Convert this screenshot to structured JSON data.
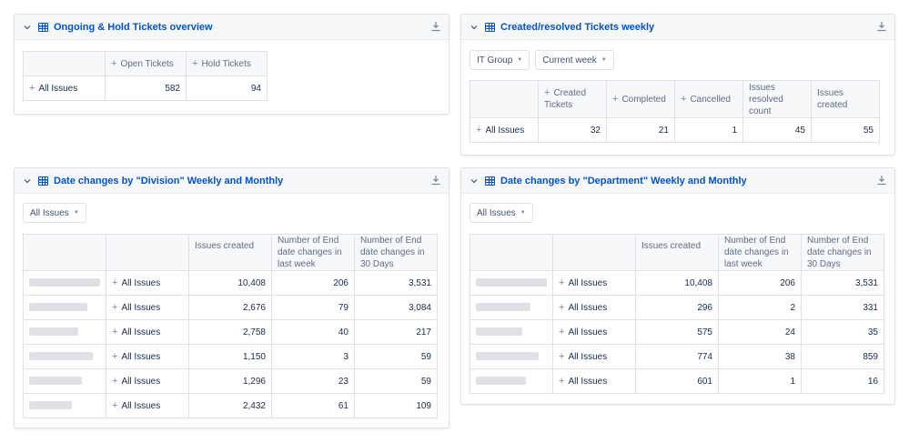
{
  "panels": {
    "ongoing": {
      "title": "Ongoing & Hold Tickets overview",
      "headers": [
        "Open Tickets",
        "Hold Tickets"
      ],
      "row_label": "All Issues",
      "values": [
        "582",
        "94"
      ]
    },
    "created": {
      "title": "Created/resolved Tickets weekly",
      "filters": [
        "IT Group",
        "Current week"
      ],
      "headers": [
        "Created Tickets",
        "Completed",
        "Cancelled",
        "Issues resolved count",
        "Issues created"
      ],
      "row_label": "All Issues",
      "values": [
        "32",
        "21",
        "1",
        "45",
        "55"
      ]
    },
    "division": {
      "title": "Date changes by \"Division\" Weekly and Monthly",
      "filter": "All Issues",
      "headers": [
        "Issues created",
        "Number of End date changes in last week",
        "Number of End date changes in 30 Days"
      ],
      "rows": [
        {
          "label": "All Issues",
          "issues": "10,408",
          "week": "206",
          "days30": "3,531"
        },
        {
          "label": "All Issues",
          "issues": "2,676",
          "week": "79",
          "days30": "3,084"
        },
        {
          "label": "All Issues",
          "issues": "2,758",
          "week": "40",
          "days30": "217"
        },
        {
          "label": "All Issues",
          "issues": "1,150",
          "week": "3",
          "days30": "59"
        },
        {
          "label": "All Issues",
          "issues": "1,296",
          "week": "23",
          "days30": "59"
        },
        {
          "label": "All Issues",
          "issues": "2,432",
          "week": "61",
          "days30": "109"
        }
      ]
    },
    "department": {
      "title": "Date changes by \"Department\" Weekly and Monthly",
      "filter": "All Issues",
      "headers": [
        "Issues created",
        "Number of End date changes in last week",
        "Number of End date changes in 30 Days"
      ],
      "rows": [
        {
          "label": "All Issues",
          "issues": "10,408",
          "week": "206",
          "days30": "3,531"
        },
        {
          "label": "All Issues",
          "issues": "296",
          "week": "2",
          "days30": "331"
        },
        {
          "label": "All Issues",
          "issues": "575",
          "week": "24",
          "days30": "35"
        },
        {
          "label": "All Issues",
          "issues": "774",
          "week": "38",
          "days30": "859"
        },
        {
          "label": "All Issues",
          "issues": "601",
          "week": "1",
          "days30": "16"
        }
      ]
    }
  },
  "icons": {
    "collapse": "chevron-down-icon",
    "table": "table-icon",
    "download": "download-icon",
    "expand": "plus-icon"
  },
  "colors": {
    "accent": "#0052cc",
    "border": "#dfe1e6",
    "header_bg": "#f7f8fa",
    "redacted": "#dfe1e6"
  }
}
